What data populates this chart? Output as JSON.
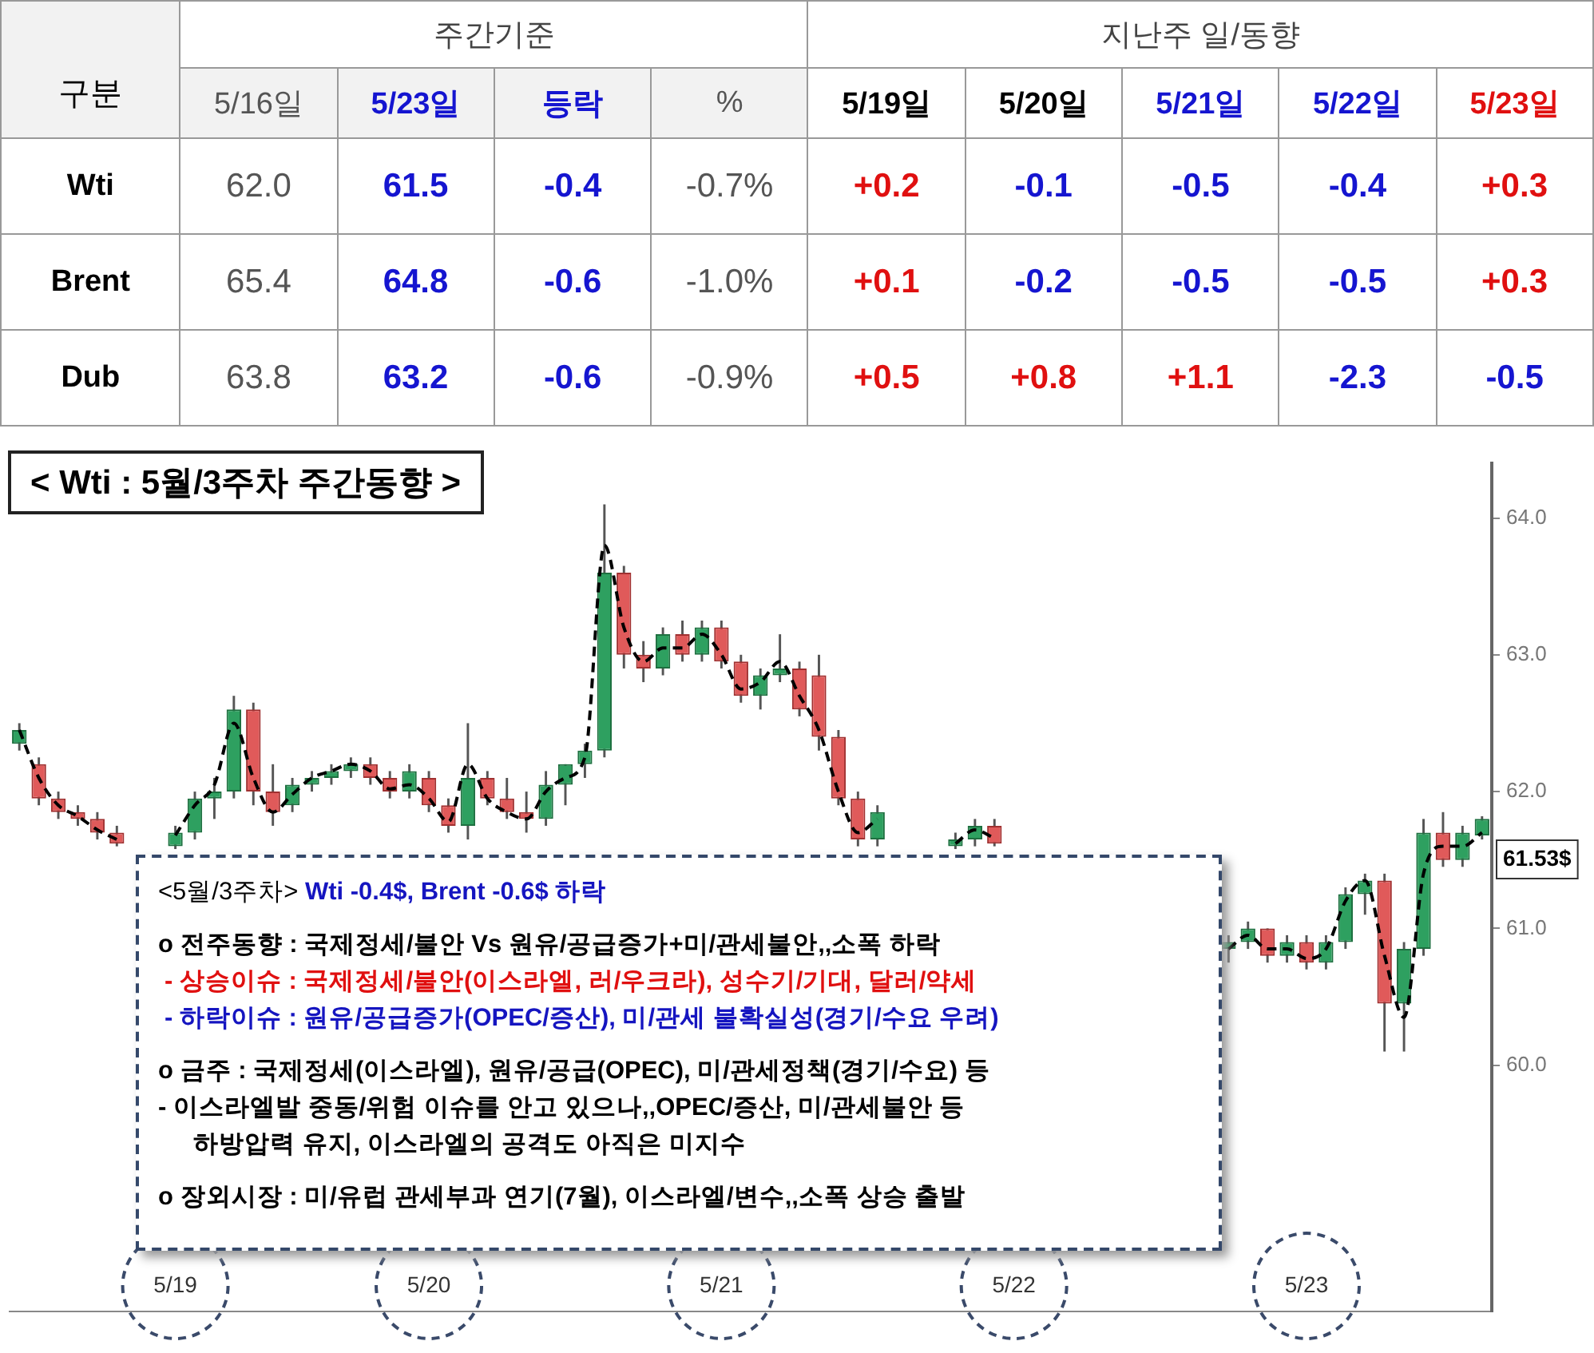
{
  "chart_data": [
    {
      "type": "heatmap",
      "ylabel": "구분",
      "annotations": [
        "주간기준",
        "지난주 일/동향"
      ],
      "categories": [
        "5/16일",
        "5/23일",
        "등락",
        "%",
        "5/19일",
        "5/20일",
        "5/21일",
        "5/22일",
        "5/23일"
      ],
      "y_categories": [
        "Wti",
        "Brent",
        "Dub"
      ],
      "cells": [
        [
          62.0,
          61.5,
          -0.4,
          -0.7,
          0.2,
          -0.1,
          -0.5,
          -0.4,
          0.3
        ],
        [
          65.4,
          64.8,
          -0.6,
          -1.0,
          0.1,
          -0.2,
          -0.5,
          -0.5,
          0.3
        ],
        [
          63.8,
          63.2,
          -0.6,
          -0.9,
          0.5,
          0.8,
          1.1,
          -2.3,
          -0.5
        ]
      ],
      "cell_labels": [
        [
          "62.0",
          "61.5",
          "-0.4",
          "-0.7%",
          "+0.2",
          "-0.1",
          "-0.5",
          "-0.4",
          "+0.3"
        ],
        [
          "65.4",
          "64.8",
          "-0.6",
          "-1.0%",
          "+0.1",
          "-0.2",
          "-0.5",
          "-0.5",
          "+0.3"
        ],
        [
          "63.8",
          "63.2",
          "-0.6",
          "-0.9%",
          "+0.5",
          "+0.8",
          "+1.1",
          "-2.3",
          "-0.5"
        ]
      ]
    },
    {
      "type": "candlestick",
      "title": "< Wti : 5월/3주차 주간동향 >",
      "categories": [
        null,
        null,
        null,
        null,
        null,
        null,
        null,
        null,
        null,
        null,
        null,
        null,
        null,
        null,
        null,
        null,
        null,
        null,
        null,
        null,
        null,
        null,
        null,
        null,
        null,
        null,
        null,
        null,
        null,
        null,
        null,
        null,
        null,
        null,
        null,
        null,
        null,
        null,
        null,
        null,
        null,
        null,
        null,
        null,
        null,
        null,
        null,
        null,
        null,
        null,
        null,
        null,
        null,
        null,
        null,
        null,
        null,
        null,
        null,
        null,
        null,
        null,
        null,
        null,
        null,
        null,
        null,
        null,
        null,
        null,
        null,
        null,
        null,
        null,
        null,
        null
      ],
      "ohlc": [
        [
          62.35,
          62.5,
          62.3,
          62.45
        ],
        [
          62.2,
          62.25,
          61.9,
          61.95
        ],
        [
          61.95,
          62.0,
          61.8,
          61.85
        ],
        [
          61.85,
          61.9,
          61.75,
          61.8
        ],
        [
          61.8,
          61.85,
          61.65,
          61.7
        ],
        [
          61.7,
          61.75,
          61.6,
          61.62
        ],
        null,
        null,
        [
          61.6,
          61.75,
          61.58,
          61.7
        ],
        [
          61.7,
          62.0,
          61.65,
          61.95
        ],
        [
          61.95,
          62.1,
          61.8,
          62.0
        ],
        [
          62.0,
          62.7,
          61.95,
          62.6
        ],
        [
          62.6,
          62.65,
          61.9,
          62.0
        ],
        [
          62.0,
          62.2,
          61.75,
          61.85
        ],
        [
          61.9,
          62.1,
          61.85,
          62.05
        ],
        [
          62.05,
          62.15,
          62.0,
          62.1
        ],
        [
          62.1,
          62.2,
          62.05,
          62.15
        ],
        [
          62.15,
          62.25,
          62.1,
          62.2
        ],
        [
          62.2,
          62.25,
          62.05,
          62.1
        ],
        [
          62.1,
          62.15,
          61.95,
          62.0
        ],
        [
          62.0,
          62.2,
          61.95,
          62.15
        ],
        [
          62.1,
          62.15,
          61.85,
          61.9
        ],
        [
          61.9,
          61.95,
          61.7,
          61.75
        ],
        [
          61.75,
          62.5,
          61.65,
          62.1
        ],
        [
          62.1,
          62.15,
          61.9,
          61.95
        ],
        [
          61.95,
          62.1,
          61.8,
          61.85
        ],
        [
          61.85,
          62.0,
          61.7,
          61.8
        ],
        [
          61.8,
          62.15,
          61.75,
          62.05
        ],
        [
          62.05,
          62.2,
          61.9,
          62.2
        ],
        [
          62.2,
          62.35,
          62.1,
          62.3
        ],
        [
          62.3,
          64.1,
          62.25,
          63.6
        ],
        [
          63.6,
          63.65,
          62.9,
          63.0
        ],
        [
          63.0,
          63.1,
          62.8,
          62.9
        ],
        [
          62.9,
          63.2,
          62.85,
          63.15
        ],
        [
          63.15,
          63.25,
          62.95,
          63.0
        ],
        [
          63.0,
          63.25,
          62.95,
          63.2
        ],
        [
          63.2,
          63.25,
          62.9,
          62.95
        ],
        [
          62.95,
          63.0,
          62.65,
          62.7
        ],
        [
          62.7,
          62.9,
          62.6,
          62.85
        ],
        [
          62.85,
          63.15,
          62.8,
          62.9
        ],
        [
          62.9,
          62.95,
          62.55,
          62.6
        ],
        [
          62.85,
          63.0,
          62.3,
          62.4
        ],
        [
          62.4,
          62.45,
          61.9,
          61.95
        ],
        [
          61.95,
          62.0,
          61.6,
          61.65
        ],
        [
          61.65,
          61.9,
          61.6,
          61.85
        ],
        null,
        null,
        null,
        [
          61.6,
          61.7,
          61.58,
          61.65
        ],
        [
          61.65,
          61.8,
          61.6,
          61.75
        ],
        [
          61.75,
          61.8,
          61.6,
          61.62
        ],
        null,
        null,
        null,
        null,
        null,
        null,
        null,
        null,
        null,
        null,
        null,
        [
          60.85,
          60.95,
          60.75,
          60.9
        ],
        [
          60.9,
          61.05,
          60.85,
          61.0
        ],
        [
          61.0,
          61.0,
          60.75,
          60.8
        ],
        [
          60.8,
          60.95,
          60.75,
          60.9
        ],
        [
          60.9,
          60.95,
          60.7,
          60.75
        ],
        [
          60.75,
          60.95,
          60.7,
          60.9
        ],
        [
          60.9,
          61.3,
          60.85,
          61.25
        ],
        [
          61.25,
          61.4,
          61.1,
          61.35
        ],
        [
          61.35,
          61.4,
          60.1,
          60.45
        ],
        [
          60.45,
          60.9,
          60.1,
          60.85
        ],
        [
          60.85,
          61.8,
          60.8,
          61.7
        ],
        [
          61.7,
          61.85,
          61.45,
          61.5
        ],
        [
          61.5,
          61.75,
          61.45,
          61.7
        ],
        [
          61.68,
          61.82,
          61.65,
          61.8
        ]
      ],
      "series": [
        {
          "type": "line",
          "line_style": "dashed",
          "color": "#000000",
          "values": [
            62.45,
            62.1,
            61.9,
            61.82,
            61.72,
            61.65,
            null,
            null,
            61.68,
            61.9,
            62.05,
            62.5,
            62.1,
            61.85,
            61.98,
            62.1,
            62.15,
            62.2,
            62.15,
            62.02,
            62.05,
            61.95,
            61.78,
            62.2,
            61.95,
            61.85,
            61.8,
            62.0,
            62.1,
            62.25,
            63.8,
            63.2,
            62.95,
            63.05,
            63.05,
            63.15,
            63.0,
            62.75,
            62.8,
            62.95,
            62.7,
            62.45,
            62.0,
            61.7,
            61.8,
            null,
            null,
            null,
            61.62,
            61.72,
            61.66,
            null,
            null,
            null,
            null,
            null,
            null,
            null,
            null,
            null,
            null,
            null,
            60.85,
            60.95,
            60.85,
            60.85,
            60.78,
            60.85,
            61.2,
            61.35,
            60.8,
            60.35,
            61.4,
            61.6,
            61.6,
            61.7
          ]
        }
      ],
      "marker": "none",
      "ylim": [
        58.2,
        64.4
      ],
      "yticks": [
        {
          "value": 60,
          "label": "60.0"
        },
        {
          "value": 61,
          "label": "61.0"
        },
        {
          "value": 62,
          "label": "62.0"
        },
        {
          "value": 63,
          "label": "63.0"
        },
        {
          "value": 64,
          "label": "64.0"
        }
      ],
      "annotations": [
        "<5월/3주차>",
        "Wti -0.4$, Brent -0.6$ 하락",
        "o 전주동향 : 국제정세/불안 Vs 원유/공급증가+미/관세불안,,소폭  하락",
        "- 상승이슈 : 국제정세/불안(이스라엘, 러/우크라), 성수기/기대, 달러/약세",
        "- 하락이슈 : 원유/공급증가(OPEC/증산), 미/관세 불확실성(경기/수요 우려)",
        "o 금주 : 국제정세(이스라엘), 원유/공급(OPEC), 미/관세정책(경기/수요) 등",
        "- 이스라엘발 중동/위험 이슈를 안고 있으나,,OPEC/증산, 미/관세불안 등",
        "하방압력 유지, 이스라엘의 공격도 아직은 미지수",
        "o 장외시장 : 미/유럽 관세부과 연기(7월), 이스라엘/변수,,소폭 상승 출발",
        "5/19",
        "5/20",
        "5/21",
        "5/22",
        "5/23",
        "61.53$"
      ]
    }
  ]
}
